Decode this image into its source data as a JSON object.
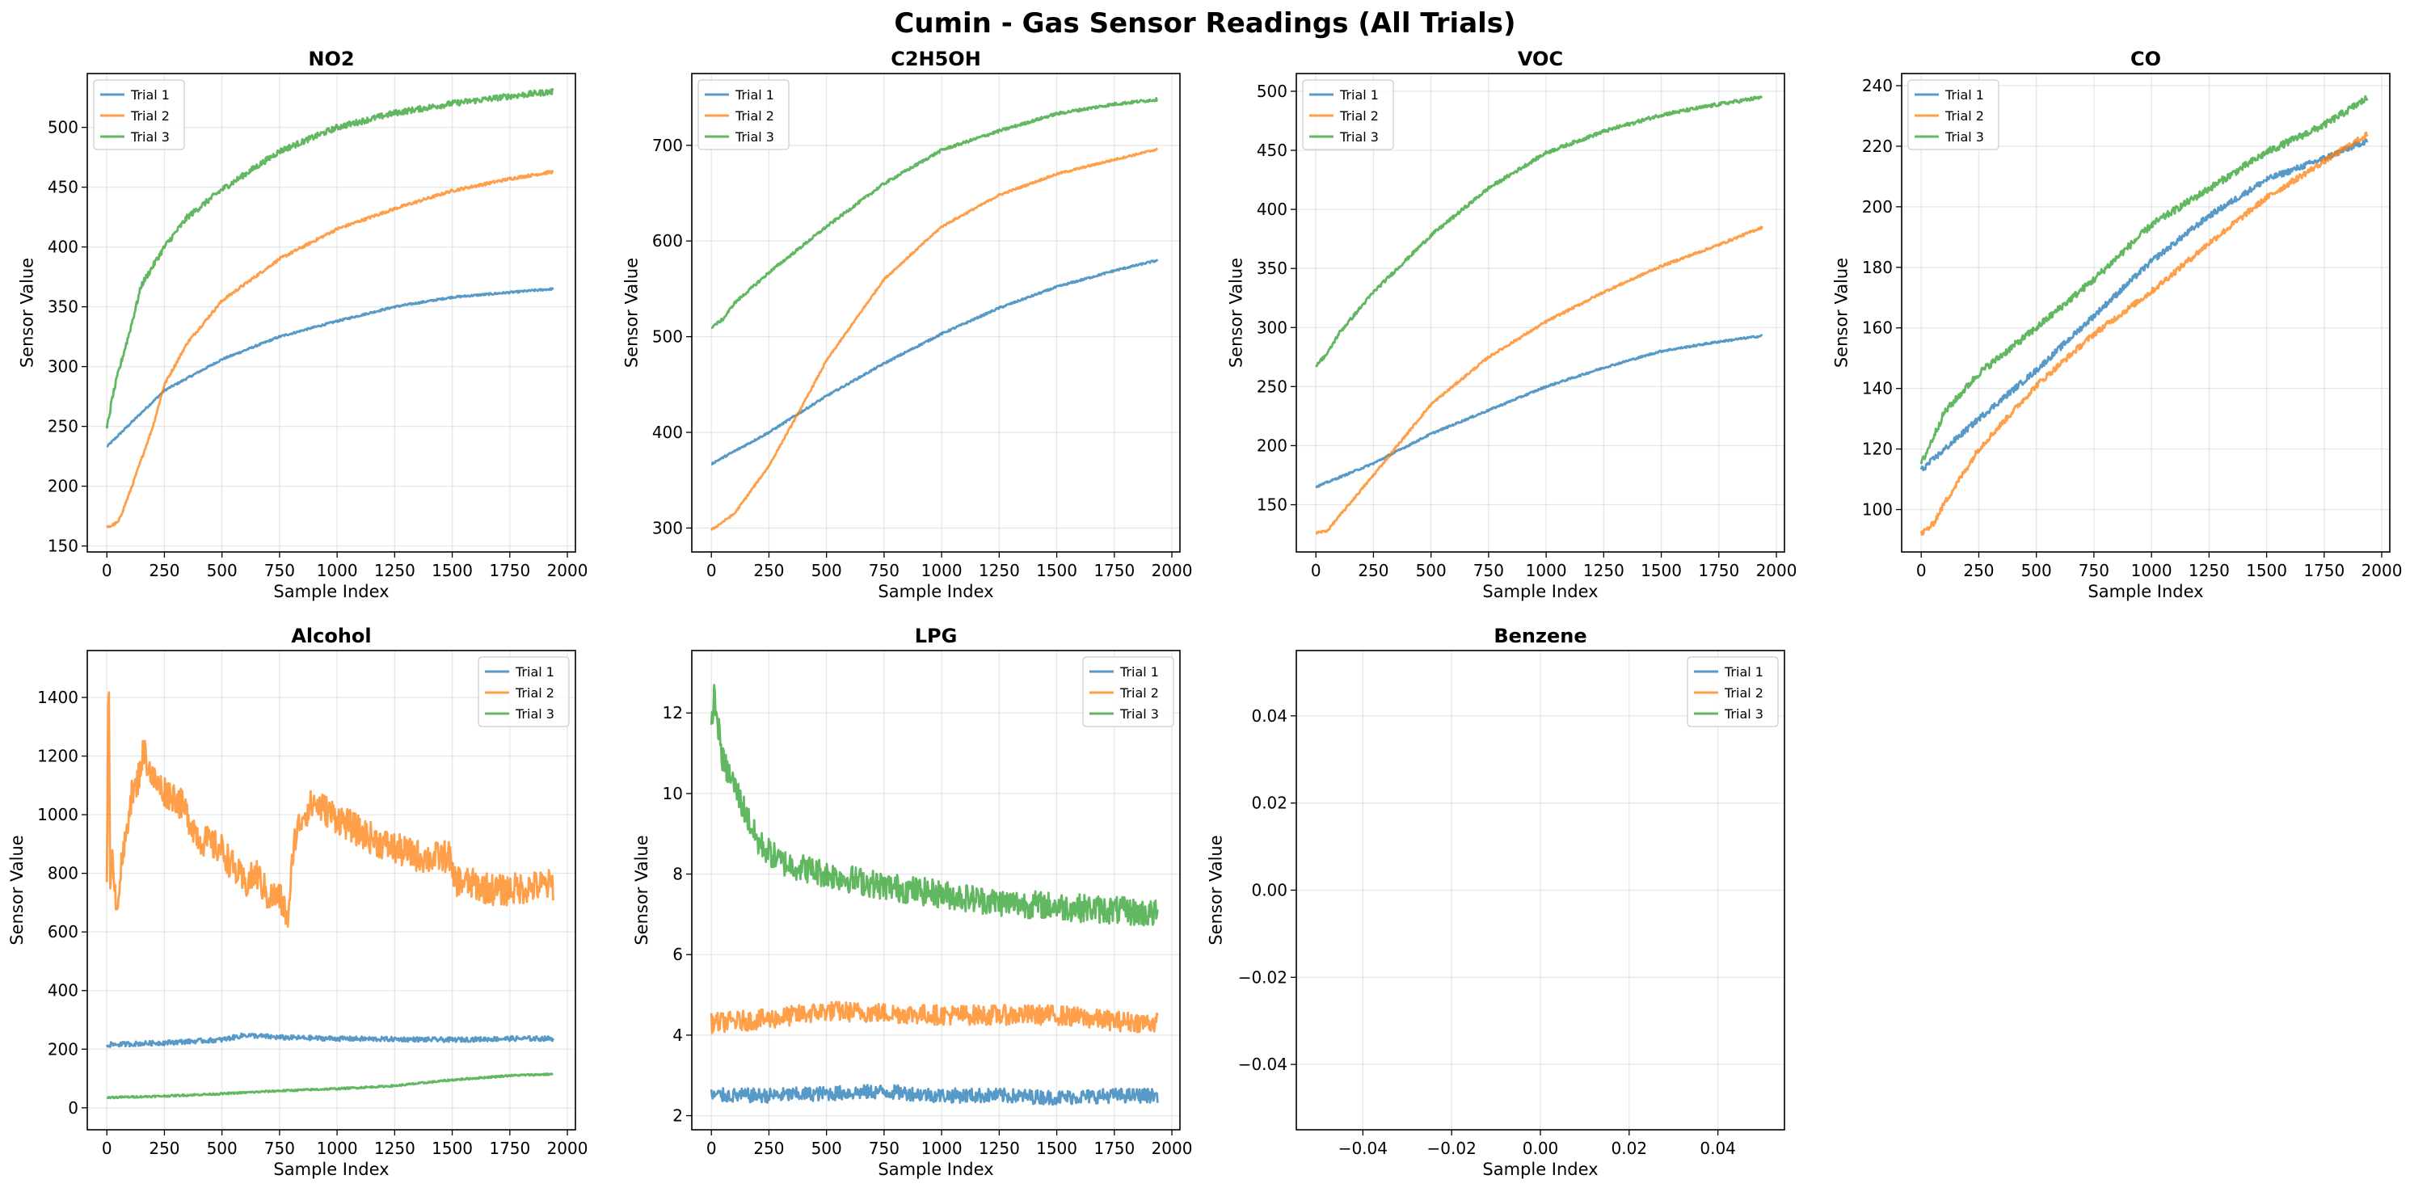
{
  "figure": {
    "title": "Cumin - Gas Sensor Readings (All Trials)"
  },
  "colors": {
    "trial1": "#1f77b4",
    "trial2": "#ff7f0e",
    "trial3": "#2ca02c"
  },
  "chart_data": [
    {
      "type": "line",
      "title": "NO2",
      "xlabel": "Sample Index",
      "ylabel": "Sensor Value",
      "xlim": [
        -85,
        2035
      ],
      "ylim": [
        145,
        545
      ],
      "xticks": [
        0,
        250,
        500,
        750,
        1000,
        1250,
        1500,
        1750,
        2000
      ],
      "yticks": [
        150,
        200,
        250,
        300,
        350,
        400,
        450,
        500
      ],
      "legend": "upper left",
      "grid": true,
      "series": [
        {
          "name": "Trial 1",
          "x": [
            0,
            100,
            250,
            500,
            750,
            1000,
            1250,
            1500,
            1750,
            1940
          ],
          "y": [
            233,
            252,
            280,
            306,
            325,
            338,
            350,
            358,
            362,
            365
          ],
          "noise": 0.8
        },
        {
          "name": "Trial 2",
          "x": [
            0,
            50,
            100,
            200,
            250,
            350,
            500,
            750,
            1000,
            1250,
            1500,
            1750,
            1940
          ],
          "y": [
            165,
            170,
            195,
            250,
            285,
            320,
            355,
            390,
            415,
            432,
            447,
            457,
            463
          ],
          "noise": 1.2
        },
        {
          "name": "Trial 3",
          "x": [
            0,
            25,
            50,
            100,
            150,
            250,
            350,
            500,
            750,
            1000,
            1250,
            1500,
            1750,
            1940
          ],
          "y": [
            248,
            275,
            295,
            330,
            368,
            400,
            425,
            448,
            480,
            500,
            512,
            520,
            526,
            530
          ],
          "noise": 2.5
        }
      ]
    },
    {
      "type": "line",
      "title": "C2H5OH",
      "xlabel": "Sample Index",
      "ylabel": "Sensor Value",
      "xlim": [
        -85,
        2035
      ],
      "ylim": [
        275,
        775
      ],
      "xticks": [
        0,
        250,
        500,
        750,
        1000,
        1250,
        1500,
        1750,
        2000
      ],
      "yticks": [
        300,
        400,
        500,
        600,
        700
      ],
      "legend": "upper left",
      "grid": true,
      "series": [
        {
          "name": "Trial 1",
          "x": [
            0,
            250,
            500,
            750,
            1000,
            1250,
            1500,
            1750,
            1940
          ],
          "y": [
            367,
            400,
            438,
            472,
            503,
            530,
            552,
            569,
            580
          ],
          "noise": 1.0
        },
        {
          "name": "Trial 2",
          "x": [
            0,
            100,
            250,
            400,
            500,
            750,
            1000,
            1250,
            1500,
            1750,
            1940
          ],
          "y": [
            298,
            315,
            365,
            430,
            475,
            560,
            615,
            648,
            670,
            685,
            696
          ],
          "noise": 1.0
        },
        {
          "name": "Trial 3",
          "x": [
            0,
            50,
            100,
            250,
            500,
            750,
            1000,
            1250,
            1500,
            1750,
            1940
          ],
          "y": [
            510,
            518,
            535,
            567,
            615,
            660,
            695,
            715,
            733,
            743,
            748
          ],
          "noise": 1.5
        }
      ]
    },
    {
      "type": "line",
      "title": "VOC",
      "xlabel": "Sample Index",
      "ylabel": "Sensor Value",
      "xlim": [
        -85,
        2035
      ],
      "ylim": [
        110,
        515
      ],
      "xticks": [
        0,
        250,
        500,
        750,
        1000,
        1250,
        1500,
        1750,
        2000
      ],
      "yticks": [
        150,
        200,
        250,
        300,
        350,
        400,
        450,
        500
      ],
      "legend": "upper left",
      "grid": true,
      "series": [
        {
          "name": "Trial 1",
          "x": [
            0,
            250,
            500,
            750,
            1000,
            1250,
            1500,
            1750,
            1940
          ],
          "y": [
            165,
            185,
            210,
            230,
            250,
            266,
            280,
            288,
            293
          ],
          "noise": 0.8
        },
        {
          "name": "Trial 2",
          "x": [
            0,
            50,
            100,
            250,
            500,
            750,
            1000,
            1250,
            1500,
            1750,
            1940
          ],
          "y": [
            126,
            128,
            140,
            175,
            235,
            275,
            305,
            330,
            352,
            370,
            385
          ],
          "noise": 1.0
        },
        {
          "name": "Trial 3",
          "x": [
            0,
            50,
            100,
            250,
            500,
            750,
            1000,
            1250,
            1500,
            1750,
            1940
          ],
          "y": [
            268,
            278,
            295,
            330,
            378,
            418,
            448,
            466,
            480,
            489,
            495
          ],
          "noise": 1.5
        }
      ]
    },
    {
      "type": "line",
      "title": "CO",
      "xlabel": "Sample Index",
      "ylabel": "Sensor Value",
      "xlim": [
        -85,
        2035
      ],
      "ylim": [
        86,
        244
      ],
      "xticks": [
        0,
        250,
        500,
        750,
        1000,
        1250,
        1500,
        1750,
        2000
      ],
      "yticks": [
        100,
        120,
        140,
        160,
        180,
        200,
        220,
        240
      ],
      "legend": "upper left",
      "grid": true,
      "series": [
        {
          "name": "Trial 1",
          "x": [
            0,
            250,
            500,
            750,
            1000,
            1250,
            1500,
            1750,
            1940
          ],
          "y": [
            113,
            130,
            146,
            164,
            182,
            197,
            209,
            216,
            222
          ],
          "noise": 1.0
        },
        {
          "name": "Trial 2",
          "x": [
            0,
            50,
            100,
            250,
            500,
            750,
            1000,
            1250,
            1500,
            1750,
            1940
          ],
          "y": [
            92,
            95,
            102,
            120,
            141,
            158,
            172,
            188,
            203,
            215,
            224
          ],
          "noise": 1.0
        },
        {
          "name": "Trial 3",
          "x": [
            0,
            100,
            250,
            500,
            750,
            1000,
            1250,
            1500,
            1750,
            1940
          ],
          "y": [
            115,
            132,
            145,
            160,
            176,
            194,
            206,
            218,
            227,
            236
          ],
          "noise": 1.2
        }
      ]
    },
    {
      "type": "line",
      "title": "Alcohol",
      "xlabel": "Sample Index",
      "ylabel": "Sensor Value",
      "xlim": [
        -85,
        2035
      ],
      "ylim": [
        -75,
        1560
      ],
      "xticks": [
        0,
        250,
        500,
        750,
        1000,
        1250,
        1500,
        1750,
        2000
      ],
      "yticks": [
        0,
        200,
        400,
        600,
        800,
        1000,
        1200,
        1400
      ],
      "legend": "upper right",
      "grid": true,
      "series": [
        {
          "name": "Trial 1",
          "x": [
            0,
            250,
            500,
            600,
            750,
            1000,
            1250,
            1500,
            1750,
            1940
          ],
          "y": [
            215,
            222,
            232,
            248,
            240,
            236,
            234,
            232,
            236,
            236
          ],
          "noise": 8
        },
        {
          "name": "Trial 2",
          "x": [
            0,
            8,
            15,
            25,
            40,
            60,
            80,
            100,
            130,
            160,
            200,
            250,
            300,
            350,
            400,
            450,
            500,
            550,
            600,
            650,
            700,
            750,
            790,
            810,
            850,
            900,
            1000,
            1100,
            1200,
            1300,
            1400,
            1490,
            1500,
            1600,
            1700,
            1800,
            1940
          ],
          "y": [
            820,
            1500,
            700,
            900,
            680,
            800,
            900,
            1050,
            1100,
            1220,
            1120,
            1080,
            1060,
            1000,
            920,
            900,
            880,
            820,
            760,
            800,
            720,
            720,
            640,
            900,
            1000,
            1040,
            990,
            940,
            900,
            870,
            850,
            860,
            780,
            760,
            740,
            750,
            760
          ],
          "noise": 55
        },
        {
          "name": "Trial 3",
          "x": [
            0,
            250,
            500,
            750,
            1000,
            1250,
            1500,
            1750,
            1940
          ],
          "y": [
            35,
            40,
            48,
            58,
            65,
            75,
            95,
            110,
            115
          ],
          "noise": 3
        }
      ]
    },
    {
      "type": "line",
      "title": "LPG",
      "xlabel": "Sample Index",
      "ylabel": "Sensor Value",
      "xlim": [
        -85,
        2035
      ],
      "ylim": [
        1.65,
        13.55
      ],
      "xticks": [
        0,
        250,
        500,
        750,
        1000,
        1250,
        1500,
        1750,
        2000
      ],
      "yticks": [
        2,
        4,
        6,
        8,
        10,
        12
      ],
      "legend": "upper right",
      "grid": true,
      "series": [
        {
          "name": "Trial 1",
          "x": [
            0,
            250,
            500,
            750,
            1000,
            1250,
            1500,
            1750,
            1940
          ],
          "y": [
            2.5,
            2.5,
            2.55,
            2.6,
            2.5,
            2.5,
            2.45,
            2.5,
            2.5
          ],
          "noise": 0.18
        },
        {
          "name": "Trial 2",
          "x": [
            0,
            250,
            500,
            750,
            1000,
            1250,
            1500,
            1750,
            1940
          ],
          "y": [
            4.3,
            4.4,
            4.6,
            4.55,
            4.5,
            4.5,
            4.5,
            4.35,
            4.3
          ],
          "noise": 0.25
        },
        {
          "name": "Trial 3",
          "x": [
            0,
            10,
            50,
            100,
            150,
            200,
            300,
            500,
            750,
            1000,
            1250,
            1500,
            1750,
            1940
          ],
          "y": [
            11.5,
            12.5,
            10.8,
            10.2,
            9.5,
            8.8,
            8.3,
            8.0,
            7.7,
            7.5,
            7.3,
            7.2,
            7.1,
            7.0
          ],
          "noise": 0.35
        }
      ]
    },
    {
      "type": "line",
      "title": "Benzene",
      "xlabel": "Sample Index",
      "ylabel": "Sensor Value",
      "xlim": [
        -0.055,
        0.055
      ],
      "ylim": [
        -0.055,
        0.055
      ],
      "xticks": [
        -0.04,
        -0.02,
        0.0,
        0.02,
        0.04
      ],
      "yticks": [
        -0.04,
        -0.02,
        0.0,
        0.02,
        0.04
      ],
      "tick_labels": [
        "−0.04",
        "−0.02",
        "0.00",
        "0.02",
        "0.04"
      ],
      "legend": "upper right",
      "grid": true,
      "series": [
        {
          "name": "Trial 1",
          "x": [],
          "y": []
        },
        {
          "name": "Trial 2",
          "x": [],
          "y": []
        },
        {
          "name": "Trial 3",
          "x": [],
          "y": []
        }
      ]
    }
  ]
}
